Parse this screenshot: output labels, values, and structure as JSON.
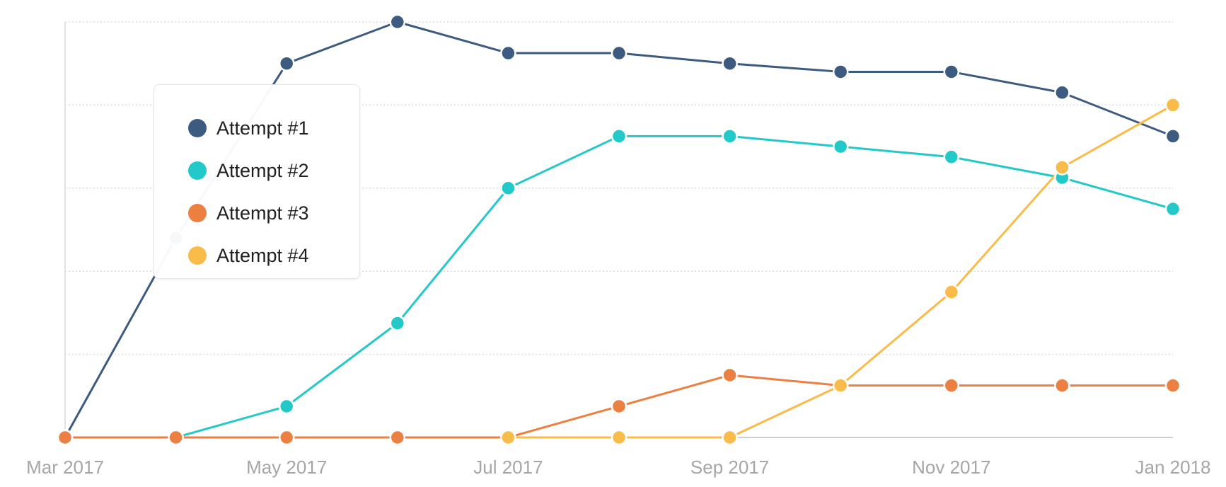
{
  "chart_data": {
    "type": "line",
    "x": [
      "2017-03",
      "2017-04",
      "2017-05",
      "2017-06",
      "2017-07",
      "2017-08",
      "2017-09",
      "2017-10",
      "2017-11",
      "2017-12",
      "2018-01"
    ],
    "x_tick_labels": [
      "Mar 2017",
      "May 2017",
      "Jul 2017",
      "Sep 2017",
      "Nov 2017",
      "Jan 2018"
    ],
    "x_tick_positions": [
      "2017-03",
      "2017-05",
      "2017-07",
      "2017-09",
      "2017-11",
      "2018-01"
    ],
    "ylim": [
      0,
      100
    ],
    "grid": true,
    "legend": "top-left",
    "series": [
      {
        "name": "Attempt #1",
        "color": "#3d5a80",
        "values": [
          0,
          48,
          90,
          100,
          92.5,
          92.5,
          90,
          88,
          88,
          83,
          72.5
        ]
      },
      {
        "name": "Attempt #2",
        "color": "#23c9c9",
        "values": [
          0,
          0,
          7.5,
          27.5,
          60,
          72.5,
          72.5,
          70,
          67.5,
          62.5,
          55
        ]
      },
      {
        "name": "Attempt #3",
        "color": "#ec7f42",
        "values": [
          0,
          0,
          0,
          0,
          0,
          7.5,
          15,
          12.5,
          12.5,
          12.5,
          12.5
        ]
      },
      {
        "name": "Attempt #4",
        "color": "#f9bb4a",
        "values": [
          null,
          null,
          null,
          null,
          0,
          0,
          0,
          12.5,
          35,
          65,
          80
        ]
      }
    ]
  }
}
